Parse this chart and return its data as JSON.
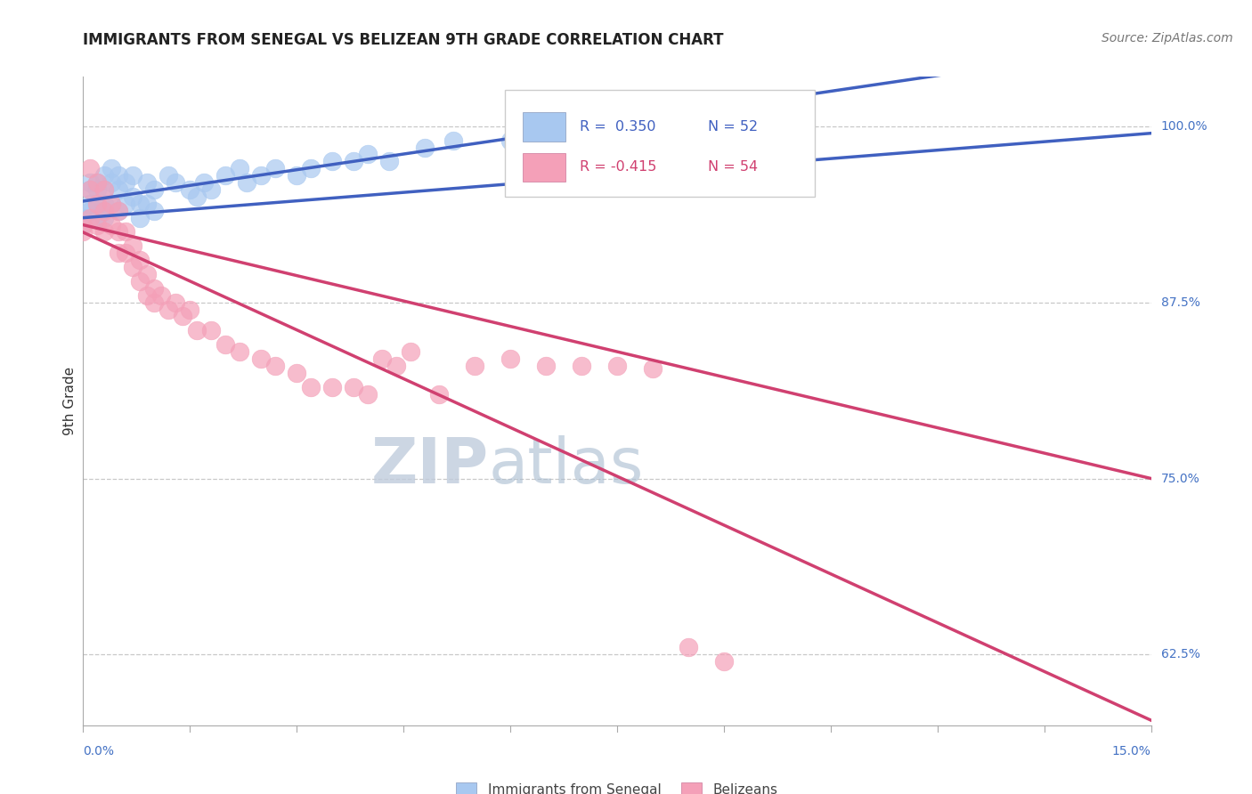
{
  "title": "IMMIGRANTS FROM SENEGAL VS BELIZEAN 9TH GRADE CORRELATION CHART",
  "source": "Source: ZipAtlas.com",
  "ylabel": "9th Grade",
  "ylabel_right_ticks": [
    "100.0%",
    "87.5%",
    "75.0%",
    "62.5%"
  ],
  "ylabel_right_vals": [
    1.0,
    0.875,
    0.75,
    0.625
  ],
  "xmin": 0.0,
  "xmax": 0.15,
  "ymin": 0.575,
  "ymax": 1.035,
  "blue_color": "#A8C8F0",
  "pink_color": "#F4A0B8",
  "blue_line_color": "#4060C0",
  "pink_line_color": "#D04070",
  "grid_color": "#C8C8C8",
  "watermark_color": "#D8E4F4",
  "blue_scatter_x": [
    0.0,
    0.0,
    0.001,
    0.001,
    0.001,
    0.001,
    0.002,
    0.002,
    0.002,
    0.002,
    0.003,
    0.003,
    0.003,
    0.003,
    0.004,
    0.004,
    0.004,
    0.005,
    0.005,
    0.005,
    0.006,
    0.006,
    0.007,
    0.007,
    0.008,
    0.008,
    0.009,
    0.009,
    0.01,
    0.01,
    0.012,
    0.013,
    0.015,
    0.016,
    0.017,
    0.018,
    0.02,
    0.022,
    0.023,
    0.025,
    0.027,
    0.03,
    0.032,
    0.035,
    0.038,
    0.04,
    0.043,
    0.048,
    0.052,
    0.06,
    0.065,
    0.075
  ],
  "blue_scatter_y": [
    0.935,
    0.93,
    0.96,
    0.955,
    0.945,
    0.94,
    0.96,
    0.955,
    0.945,
    0.935,
    0.965,
    0.955,
    0.945,
    0.935,
    0.97,
    0.96,
    0.945,
    0.965,
    0.955,
    0.94,
    0.96,
    0.945,
    0.965,
    0.95,
    0.945,
    0.935,
    0.96,
    0.945,
    0.955,
    0.94,
    0.965,
    0.96,
    0.955,
    0.95,
    0.96,
    0.955,
    0.965,
    0.97,
    0.96,
    0.965,
    0.97,
    0.965,
    0.97,
    0.975,
    0.975,
    0.98,
    0.975,
    0.985,
    0.99,
    0.99,
    0.995,
    1.0
  ],
  "pink_scatter_x": [
    0.0,
    0.0,
    0.001,
    0.001,
    0.001,
    0.002,
    0.002,
    0.002,
    0.003,
    0.003,
    0.003,
    0.004,
    0.004,
    0.005,
    0.005,
    0.005,
    0.006,
    0.006,
    0.007,
    0.007,
    0.008,
    0.008,
    0.009,
    0.009,
    0.01,
    0.01,
    0.011,
    0.012,
    0.013,
    0.014,
    0.015,
    0.016,
    0.018,
    0.02,
    0.022,
    0.025,
    0.027,
    0.03,
    0.032,
    0.035,
    0.038,
    0.04,
    0.042,
    0.044,
    0.046,
    0.05,
    0.055,
    0.06,
    0.065,
    0.07,
    0.075,
    0.08,
    0.085,
    0.09
  ],
  "pink_scatter_y": [
    0.93,
    0.925,
    0.97,
    0.955,
    0.935,
    0.96,
    0.945,
    0.93,
    0.955,
    0.94,
    0.925,
    0.945,
    0.93,
    0.94,
    0.925,
    0.91,
    0.925,
    0.91,
    0.915,
    0.9,
    0.905,
    0.89,
    0.895,
    0.88,
    0.885,
    0.875,
    0.88,
    0.87,
    0.875,
    0.865,
    0.87,
    0.855,
    0.855,
    0.845,
    0.84,
    0.835,
    0.83,
    0.825,
    0.815,
    0.815,
    0.815,
    0.81,
    0.835,
    0.83,
    0.84,
    0.81,
    0.83,
    0.835,
    0.83,
    0.83,
    0.83,
    0.828,
    0.63,
    0.62
  ]
}
